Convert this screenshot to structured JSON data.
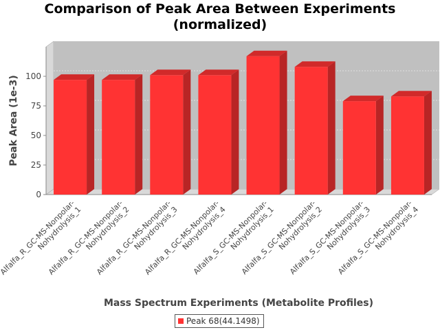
{
  "chart_data": {
    "type": "bar",
    "title": "Comparison of Peak Area Between Experiments (normalized)",
    "title_lines": [
      "Comparison of Peak Area Between Experiments",
      "(normalized)"
    ],
    "xlabel": "Mass Spectrum Experiments (Metabolite Profiles)",
    "ylabel": "Peak Area (1e-3)",
    "ylim": [
      0,
      125
    ],
    "yticks": [
      0,
      25,
      50,
      75,
      100
    ],
    "grid": true,
    "three_d": true,
    "legend_position": "bottom",
    "categories": [
      [
        "Alfalfa_R_GC-MS-Nonpolar-",
        "Nohydrolysis_1"
      ],
      [
        "Alfalfa_R_GC-MS-Nonpolar-",
        "Nohydrolysis_2"
      ],
      [
        "Alfalfa_R_GC-MS-Nonpolar-",
        "Nohydrolysis_3"
      ],
      [
        "Alfalfa_R_GC-MS-Nonpolar-",
        "Nohydrolysis_4"
      ],
      [
        "Alfalfa_S_GC-MS-Nonpolar-",
        "Nohydrolysis_1"
      ],
      [
        "Alfalfa_S_GC-MS-Nonpolar-",
        "Nohydrolysis_2"
      ],
      [
        "Alfalfa_S_GC-MS-Nonpolar-",
        "Nohydrolysis_3"
      ],
      [
        "Alfalfa_S_GC-MS-Nonpolar-",
        "Nohydrolysis_4"
      ]
    ],
    "series": [
      {
        "name": "Peak 68(44.1498)",
        "color": "#ff3333",
        "values": [
          97,
          97,
          101,
          101,
          117,
          108,
          79,
          83
        ]
      }
    ]
  }
}
